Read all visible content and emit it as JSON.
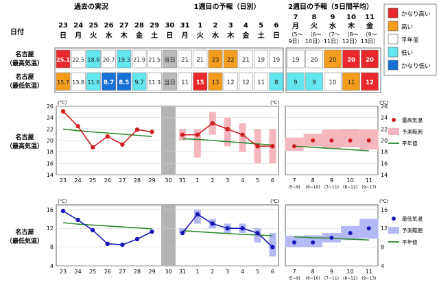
{
  "header": {
    "row_label": "日付",
    "past_title": "過去の実況",
    "week1_title": "1週目の予報（日別）",
    "week2_title": "2週目の予報（5日間平均）"
  },
  "days": [
    {
      "d": "23",
      "w": "日"
    },
    {
      "d": "24",
      "w": "月"
    },
    {
      "d": "25",
      "w": "火"
    },
    {
      "d": "26",
      "w": "水"
    },
    {
      "d": "27",
      "w": "木"
    },
    {
      "d": "28",
      "w": "金"
    },
    {
      "d": "29",
      "w": "土"
    },
    {
      "d": "30",
      "w": "日"
    },
    {
      "d": "31",
      "w": "月"
    },
    {
      "d": "1",
      "w": "火"
    },
    {
      "d": "2",
      "w": "水"
    },
    {
      "d": "3",
      "w": "木"
    },
    {
      "d": "4",
      "w": "金"
    },
    {
      "d": "5",
      "w": "土"
    },
    {
      "d": "6",
      "w": "日"
    }
  ],
  "week2_headers": [
    {
      "d": "7",
      "w": "月",
      "r1": "（5～",
      "r2": "9日）"
    },
    {
      "d": "8",
      "w": "火",
      "r1": "（6～",
      "r2": "10日）"
    },
    {
      "d": "9",
      "w": "水",
      "r1": "（7～",
      "r2": "11日）"
    },
    {
      "d": "10",
      "w": "木",
      "r1": "（8～",
      "r2": "12日）"
    },
    {
      "d": "11",
      "w": "金",
      "r1": "（9～",
      "r2": "13日）"
    }
  ],
  "table_rows": [
    {
      "label1": "名古屋",
      "label2": "（最高気温）",
      "cells": [
        "25.1",
        "22.5",
        "18.8",
        "20.7",
        "19.3",
        "21.9",
        "21.5",
        "当日",
        "21",
        "21",
        "23",
        "22",
        "21",
        "19",
        "19"
      ],
      "classes": [
        "vhigh",
        "normal",
        "low",
        "normal",
        "low",
        "normal",
        "normal",
        "today",
        "normal",
        "normal",
        "high",
        "high",
        "normal",
        "normal",
        "normal"
      ],
      "week2_cells": [
        "19",
        "20",
        "20",
        "20",
        "20"
      ],
      "week2_classes": [
        "normal",
        "normal",
        "high",
        "vhigh",
        "vhigh"
      ]
    },
    {
      "label1": "名古屋",
      "label2": "（最低気温）",
      "cells": [
        "15.7",
        "13.8",
        "11.6",
        "8.7",
        "8.5",
        "9.7",
        "11.3",
        "当日",
        "11",
        "15",
        "13",
        "12",
        "12",
        "11",
        "8"
      ],
      "classes": [
        "high",
        "normal",
        "low",
        "vlow",
        "vlow",
        "low",
        "normal",
        "today",
        "normal",
        "vhigh",
        "high",
        "normal",
        "normal",
        "normal",
        "low"
      ],
      "week2_cells": [
        "9",
        "9",
        "10",
        "11",
        "12"
      ],
      "week2_classes": [
        "low",
        "low",
        "normal",
        "high",
        "vhigh"
      ]
    }
  ],
  "legend_box": {
    "items": [
      {
        "label": "かなり高い",
        "color": "#e8282d"
      },
      {
        "label": "高い",
        "color": "#f39c1e"
      },
      {
        "label": "平年並",
        "color": "#ffffff"
      },
      {
        "label": "低い",
        "color": "#63e6ee"
      },
      {
        "label": "かなり低い",
        "color": "#1670d6"
      }
    ]
  },
  "colors": {
    "vhigh": "#e8282d",
    "high": "#f39c1e",
    "normal": "#ffffff",
    "low": "#63e6ee",
    "vlow": "#1670d6",
    "today": "#bbbbbb",
    "max_line": "#cc1e1e",
    "max_band": "#f4b7bd",
    "min_line": "#1818b8",
    "min_band": "#b4b8f4",
    "normal_line": "#2e8b2e",
    "gray_bar": "#b4b4b4"
  },
  "x_ticks": [
    "23",
    "24",
    "25",
    "26",
    "27",
    "28",
    "29",
    "30",
    "31",
    "1",
    "2",
    "3",
    "4",
    "5",
    "6"
  ],
  "week2_ticks": [
    {
      "d": "7",
      "r": "(5~9)"
    },
    {
      "d": "8",
      "r": "(6~10)"
    },
    {
      "d": "9",
      "r": "(7~11)"
    },
    {
      "d": "10",
      "r": "(8~12)"
    },
    {
      "d": "11",
      "r": "(9~13)"
    }
  ],
  "charts": [
    {
      "row_label1": "名古屋",
      "row_label2": "（最高気温）",
      "unit": "(℃)",
      "yticks": [
        "14",
        "16",
        "18",
        "20",
        "22",
        "24",
        "26"
      ],
      "legend": {
        "obs": "最高気温",
        "range": "予測範囲",
        "normal": "平年値"
      }
    },
    {
      "row_label1": "名古屋",
      "row_label2": "（最低気温）",
      "unit": "(℃)",
      "yticks": [
        "4",
        "8",
        "12",
        "16"
      ],
      "legend": {
        "obs": "最低気温",
        "range": "予測範囲",
        "normal": "平年値"
      }
    }
  ],
  "chart_data": [
    {
      "type": "line",
      "ylim": [
        14,
        26
      ],
      "past": {
        "x": [
          "23",
          "24",
          "25",
          "26",
          "27",
          "28",
          "29"
        ],
        "values": [
          25.1,
          22.5,
          18.8,
          20.7,
          19.3,
          21.9,
          21.5
        ],
        "normal": [
          22.0,
          21.7,
          21.5,
          21.3,
          21.1,
          20.9,
          20.7
        ]
      },
      "week1": {
        "x": [
          "31",
          "1",
          "2",
          "3",
          "4",
          "5",
          "6"
        ],
        "values": [
          21,
          21,
          23,
          22,
          21,
          19,
          19
        ],
        "range": [
          [
            20,
            22
          ],
          [
            17,
            22
          ],
          [
            21,
            25
          ],
          [
            19,
            24
          ],
          [
            18,
            23
          ],
          [
            16,
            22
          ],
          [
            16,
            22
          ]
        ],
        "normal": [
          20.3,
          20.2,
          20.0,
          19.8,
          19.6,
          19.4,
          19.2
        ]
      },
      "week2": {
        "x": [
          "7",
          "8",
          "9",
          "10",
          "11"
        ],
        "values": [
          19,
          20,
          20,
          20,
          20
        ],
        "range": [
          [
            18.2,
            20.5
          ],
          [
            19,
            21.2
          ],
          [
            18.6,
            21.9
          ],
          [
            18.8,
            22
          ],
          [
            18.4,
            21.9
          ]
        ],
        "normal": [
          19.0,
          18.8,
          18.6,
          18.4,
          18.2
        ]
      }
    },
    {
      "type": "line",
      "ylim": [
        4,
        17
      ],
      "past": {
        "x": [
          "23",
          "24",
          "25",
          "26",
          "27",
          "28",
          "29"
        ],
        "values": [
          15.7,
          13.8,
          11.6,
          8.7,
          8.5,
          9.7,
          11.3
        ],
        "normal": [
          13.2,
          12.9,
          12.7,
          12.5,
          12.3,
          12.1,
          11.9
        ]
      },
      "week1": {
        "x": [
          "31",
          "1",
          "2",
          "3",
          "4",
          "5",
          "6"
        ],
        "values": [
          11,
          15,
          13,
          12,
          12,
          11,
          8
        ],
        "range": [
          [
            11,
            12
          ],
          [
            13,
            16
          ],
          [
            12,
            14
          ],
          [
            11,
            13
          ],
          [
            11,
            13
          ],
          [
            9,
            12
          ],
          [
            6,
            11
          ]
        ],
        "normal": [
          11.5,
          11.3,
          11.1,
          10.9,
          10.7,
          10.6,
          10.4
        ]
      },
      "week2": {
        "x": [
          "7",
          "8",
          "9",
          "10",
          "11"
        ],
        "values": [
          9,
          9,
          10,
          11,
          12
        ],
        "range": [
          [
            8,
            10.4
          ],
          [
            8,
            10.5
          ],
          [
            9,
            11
          ],
          [
            9.5,
            12.5
          ],
          [
            9.8,
            14
          ]
        ],
        "normal": [
          10.2,
          10.0,
          9.9,
          9.7,
          9.5
        ]
      }
    }
  ]
}
